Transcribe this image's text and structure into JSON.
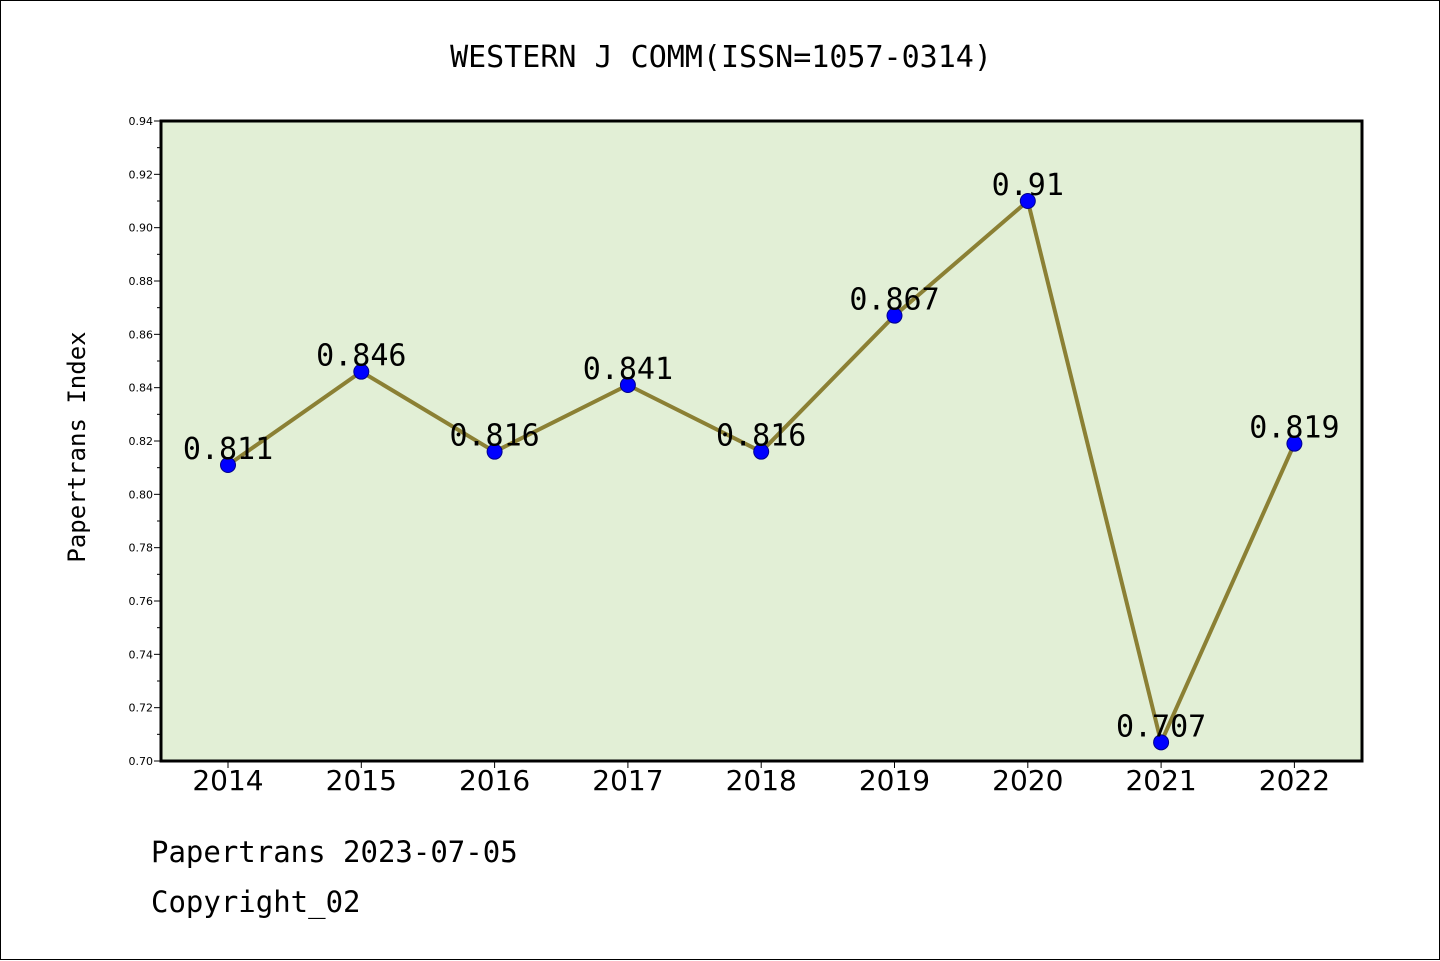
{
  "chart_data": {
    "type": "line",
    "title": "WESTERN J COMM(ISSN=1057-0314)",
    "xlabel": "",
    "ylabel": "Papertrans Index",
    "categories": [
      "2014",
      "2015",
      "2016",
      "2017",
      "2018",
      "2019",
      "2020",
      "2021",
      "2022"
    ],
    "values": [
      0.811,
      0.846,
      0.816,
      0.841,
      0.816,
      0.867,
      0.91,
      0.707,
      0.819
    ],
    "data_labels": [
      "0.811",
      "0.846",
      "0.816",
      "0.841",
      "0.816",
      "0.867",
      "0.91",
      "0.707",
      "0.819"
    ],
    "ylim": [
      0.7,
      0.94
    ],
    "yticks": [
      "0.70",
      "0.72",
      "0.74",
      "0.76",
      "0.78",
      "0.80",
      "0.82",
      "0.84",
      "0.86",
      "0.88",
      "0.90",
      "0.92",
      "0.94"
    ],
    "grid": false,
    "legend": "none",
    "colors": {
      "plot_background": "#e2efd6",
      "line": "#8b8034",
      "marker": "#0000ff",
      "marker_edge": "#00008b",
      "frame": "#000000"
    }
  },
  "footer": {
    "date_text": "Papertrans 2023-07-05",
    "copyright_text": "Copyright_02"
  }
}
